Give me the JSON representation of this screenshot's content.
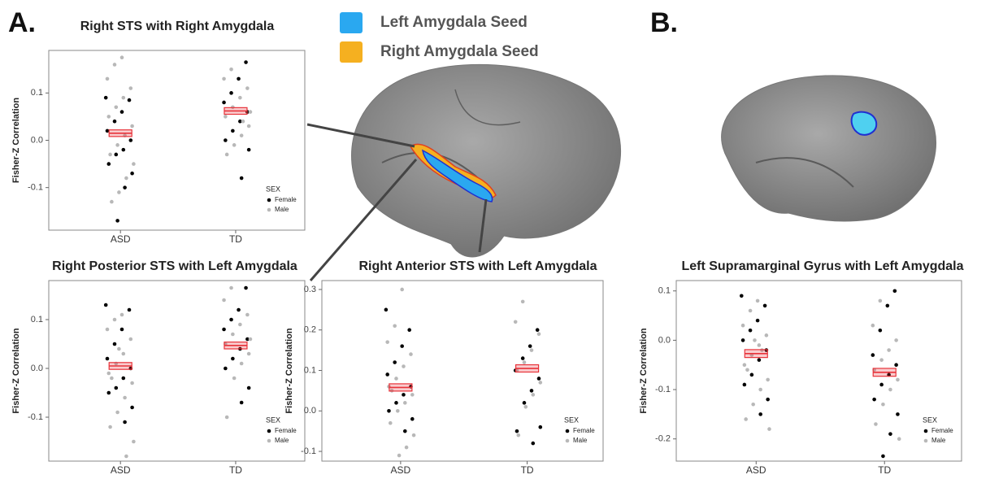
{
  "panel_labels": [
    "A.",
    "B."
  ],
  "seed_legend": [
    {
      "label": "Left Amygdala Seed",
      "color": "#2aa8f0"
    },
    {
      "label": "Right Amygdala Seed",
      "color": "#f5b020"
    }
  ],
  "chart_data": [
    {
      "type": "strip",
      "title": "Right STS with Right Amygdala",
      "y_label": "Fisher-Z Correlation",
      "categories": [
        "ASD",
        "TD"
      ],
      "legend_title": "SEX",
      "series": [
        {
          "name": "Female",
          "color": "#000000",
          "values": [
            [
              0.09,
              0.085,
              0.06,
              0.04,
              0.02,
              0.0,
              -0.02,
              -0.03,
              -0.05,
              -0.07,
              -0.1,
              -0.17
            ],
            [
              0.165,
              0.13,
              0.1,
              0.08,
              0.06,
              0.04,
              0.02,
              0.0,
              -0.02,
              -0.08
            ]
          ]
        },
        {
          "name": "Male",
          "color": "#b8b8b8",
          "values": [
            [
              0.175,
              0.16,
              0.13,
              0.11,
              0.09,
              0.07,
              0.05,
              0.03,
              0.01,
              -0.01,
              -0.03,
              -0.05,
              -0.08,
              -0.11,
              -0.13
            ],
            [
              0.15,
              0.13,
              0.11,
              0.09,
              0.07,
              0.05,
              0.03,
              0.01,
              -0.01,
              -0.03,
              0.06,
              0.04
            ]
          ]
        }
      ],
      "means": [
        0.015,
        0.062
      ],
      "errors": [
        0.007,
        0.007
      ],
      "mean_color": "#e8333a",
      "ylim": [
        -0.19,
        0.19
      ],
      "yticks": [
        -0.1,
        {
          "value": 0,
          "label": "0.0"
        },
        0.1
      ]
    },
    {
      "type": "strip",
      "title": "Right Posterior STS with Left Amygdala",
      "y_label": "Fisher-Z Correlation",
      "categories": [
        "ASD",
        "TD"
      ],
      "legend_title": "SEX",
      "series": [
        {
          "name": "Female",
          "color": "#000000",
          "values": [
            [
              0.13,
              0.12,
              0.08,
              0.05,
              0.02,
              0.0,
              -0.02,
              -0.04,
              -0.05,
              -0.08,
              -0.11
            ],
            [
              0.165,
              0.12,
              0.1,
              0.08,
              0.06,
              0.04,
              0.02,
              0.0,
              -0.04,
              -0.07
            ]
          ]
        },
        {
          "name": "Male",
          "color": "#b8b8b8",
          "values": [
            [
              0.11,
              0.1,
              0.08,
              0.06,
              0.03,
              0.01,
              -0.01,
              -0.03,
              -0.06,
              -0.09,
              -0.12,
              -0.15,
              -0.18,
              0.04,
              -0.02
            ],
            [
              0.165,
              0.14,
              0.11,
              0.09,
              0.07,
              0.05,
              0.03,
              0.01,
              -0.02,
              -0.1,
              0.06
            ]
          ]
        }
      ],
      "means": [
        0.005,
        0.047
      ],
      "errors": [
        0.007,
        0.007
      ],
      "mean_color": "#e8333a",
      "ylim": [
        -0.19,
        0.18
      ],
      "yticks": [
        -0.1,
        {
          "value": 0,
          "label": "0.0"
        },
        0.1
      ]
    },
    {
      "type": "strip",
      "title": "Right Anterior STS with Left Amygdala",
      "y_label": "Fisher-Z Correlation",
      "categories": [
        "ASD",
        "TD"
      ],
      "legend_title": "SEX",
      "series": [
        {
          "name": "Female",
          "color": "#000000",
          "values": [
            [
              0.25,
              0.2,
              0.16,
              0.12,
              0.09,
              0.06,
              0.04,
              0.02,
              0.0,
              -0.02,
              -0.05
            ],
            [
              0.2,
              0.16,
              0.13,
              0.1,
              0.08,
              0.05,
              0.02,
              -0.05,
              -0.04,
              -0.08
            ]
          ]
        },
        {
          "name": "Male",
          "color": "#b8b8b8",
          "values": [
            [
              0.3,
              0.21,
              0.17,
              0.14,
              0.11,
              0.08,
              0.06,
              0.04,
              0.02,
              0.0,
              -0.03,
              -0.06,
              -0.09,
              -0.11,
              0.05
            ],
            [
              0.27,
              0.22,
              0.19,
              0.15,
              0.12,
              0.1,
              0.07,
              0.04,
              0.01,
              -0.06
            ]
          ]
        }
      ],
      "means": [
        0.058,
        0.105
      ],
      "errors": [
        0.009,
        0.009
      ],
      "mean_color": "#e8333a",
      "ylim": [
        -0.124,
        0.322
      ],
      "yticks": [
        -0.1,
        {
          "value": 0,
          "label": "0.0"
        },
        0.1,
        0.2,
        0.3
      ]
    },
    {
      "type": "strip",
      "title": "Left Supramarginal Gyrus with Left Amygdala",
      "y_label": "Fisher-Z Correlation",
      "categories": [
        "ASD",
        "TD"
      ],
      "legend_title": "SEX",
      "series": [
        {
          "name": "Female",
          "color": "#000000",
          "values": [
            [
              0.09,
              0.07,
              0.04,
              0.02,
              0.0,
              -0.02,
              -0.04,
              -0.07,
              -0.09,
              -0.12,
              -0.15
            ],
            [
              0.1,
              0.07,
              0.02,
              -0.03,
              -0.05,
              -0.07,
              -0.09,
              -0.12,
              -0.15,
              -0.19,
              -0.235
            ]
          ]
        },
        {
          "name": "Male",
          "color": "#b8b8b8",
          "values": [
            [
              0.08,
              0.06,
              0.03,
              0.01,
              -0.01,
              -0.03,
              -0.05,
              -0.08,
              -0.1,
              -0.13,
              -0.16,
              -0.18,
              -0.02,
              0.0,
              -0.06
            ],
            [
              0.08,
              0.03,
              0.0,
              -0.02,
              -0.04,
              -0.06,
              -0.08,
              -0.1,
              -0.13,
              -0.17,
              -0.2
            ]
          ]
        }
      ],
      "means": [
        -0.027,
        -0.065
      ],
      "errors": [
        0.008,
        0.008
      ],
      "mean_color": "#e8333a",
      "ylim": [
        -0.245,
        0.121
      ],
      "yticks": [
        -0.2,
        -0.1,
        {
          "value": 0,
          "label": "0.0"
        },
        0.1
      ]
    }
  ]
}
